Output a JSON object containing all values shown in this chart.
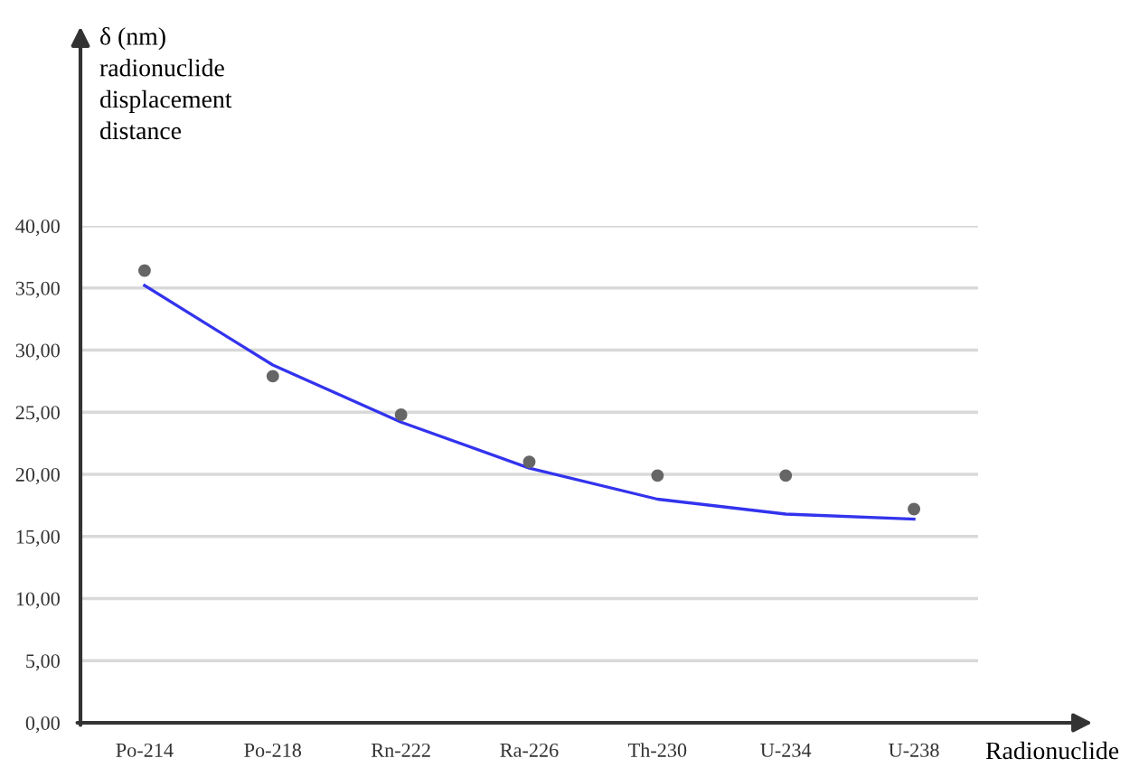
{
  "chart_data": {
    "type": "scatter",
    "xlabel": "Radionuclide",
    "ylabel": "δ (nm)\nradionuclide\ndisplacement\ndistance",
    "categories": [
      "Po-214",
      "Po-218",
      "Rn-222",
      "Ra-226",
      "Th-230",
      "U-234",
      "U-238"
    ],
    "ylim": [
      0,
      40
    ],
    "yticks": [
      {
        "value": 0,
        "label": "0,00"
      },
      {
        "value": 5,
        "label": "5,00"
      },
      {
        "value": 10,
        "label": "10,00"
      },
      {
        "value": 15,
        "label": "15,00"
      },
      {
        "value": 20,
        "label": "20,00"
      },
      {
        "value": 25,
        "label": "25,00"
      },
      {
        "value": 30,
        "label": "30,00"
      },
      {
        "value": 35,
        "label": "35,00"
      },
      {
        "value": 40,
        "label": "40,00"
      }
    ],
    "grid": "y",
    "marker": "circle",
    "series": [
      {
        "color": "#666666",
        "values": [
          36.4,
          27.9,
          24.8,
          21.0,
          19.9,
          19.9,
          17.2
        ]
      },
      {
        "type": "line",
        "color": "#3333ee",
        "marker": "none",
        "values": [
          35.2,
          28.8,
          24.2,
          20.5,
          18.0,
          16.8,
          16.4
        ]
      }
    ]
  }
}
